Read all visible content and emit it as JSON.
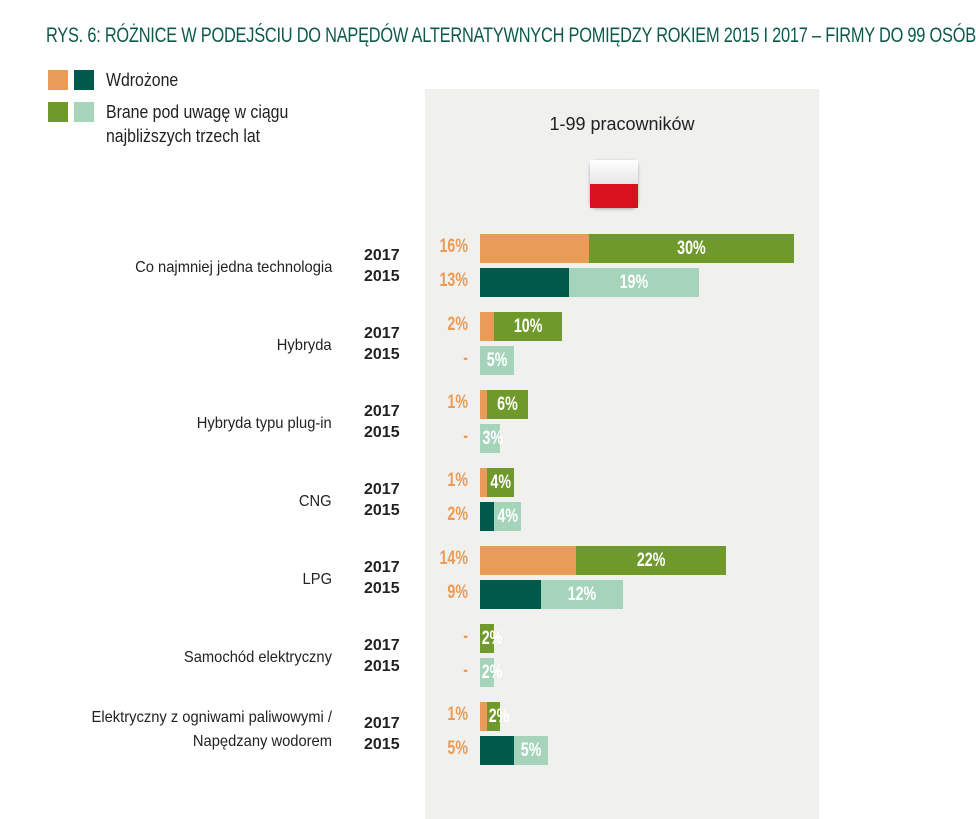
{
  "title": "RYS. 6: RÓŻNICE W PODEJŚCIU DO NAPĘDÓW ALTERNATYWNYCH POMIĘDZY ROKIEM 2015 I 2017 – FIRMY DO 99 OSÓB",
  "chart_data": {
    "type": "bar",
    "orientation": "horizontal-stacked",
    "panel_title": "1-99 pracowników",
    "legend": [
      {
        "label": "Wdrożone",
        "colors": [
          "#e99c57",
          "#005a4b"
        ]
      },
      {
        "label": "Brane pod uwagę w ciągu najbliższych trzech lat",
        "colors": [
          "#6f9a2b",
          "#a5d4bb"
        ]
      }
    ],
    "colors": {
      "implemented_2017": "#e99c57",
      "implemented_2015": "#005a4b",
      "considered_2017": "#6f9a2b",
      "considered_2015": "#a5d4bb"
    },
    "categories": [
      {
        "name": "Co najmniej jedna technologia",
        "rows": [
          {
            "year": "2017",
            "implemented": 16,
            "implemented_label": "16%",
            "considered": 30,
            "considered_label": "30%"
          },
          {
            "year": "2015",
            "implemented": 13,
            "implemented_label": "13%",
            "considered": 19,
            "considered_label": "19%"
          }
        ]
      },
      {
        "name": "Hybryda",
        "rows": [
          {
            "year": "2017",
            "implemented": 2,
            "implemented_label": "2%",
            "considered": 10,
            "considered_label": "10%"
          },
          {
            "year": "2015",
            "implemented": 0,
            "implemented_label": "-",
            "considered": 5,
            "considered_label": "5%"
          }
        ]
      },
      {
        "name": "Hybryda typu plug-in",
        "rows": [
          {
            "year": "2017",
            "implemented": 1,
            "implemented_label": "1%",
            "considered": 6,
            "considered_label": "6%"
          },
          {
            "year": "2015",
            "implemented": 0,
            "implemented_label": "-",
            "considered": 3,
            "considered_label": "3%"
          }
        ]
      },
      {
        "name": "CNG",
        "rows": [
          {
            "year": "2017",
            "implemented": 1,
            "implemented_label": "1%",
            "considered": 4,
            "considered_label": "4%"
          },
          {
            "year": "2015",
            "implemented": 2,
            "implemented_label": "2%",
            "considered": 4,
            "considered_label": "4%"
          }
        ]
      },
      {
        "name": "LPG",
        "rows": [
          {
            "year": "2017",
            "implemented": 14,
            "implemented_label": "14%",
            "considered": 22,
            "considered_label": "22%"
          },
          {
            "year": "2015",
            "implemented": 9,
            "implemented_label": "9%",
            "considered": 12,
            "considered_label": "12%"
          }
        ]
      },
      {
        "name": "Samochód elektryczny",
        "rows": [
          {
            "year": "2017",
            "implemented": 0,
            "implemented_label": "-",
            "considered": 2,
            "considered_label": "2%"
          },
          {
            "year": "2015",
            "implemented": 0,
            "implemented_label": "-",
            "considered": 2,
            "considered_label": "2%"
          }
        ]
      },
      {
        "name": "Elektryczny z ogniwami paliwowymi / Napędzany wodorem",
        "rows": [
          {
            "year": "2017",
            "implemented": 1,
            "implemented_label": "1%",
            "considered": 2,
            "considered_label": "2%"
          },
          {
            "year": "2015",
            "implemented": 5,
            "implemented_label": "5%",
            "considered": 5,
            "considered_label": "5%"
          }
        ]
      }
    ]
  }
}
